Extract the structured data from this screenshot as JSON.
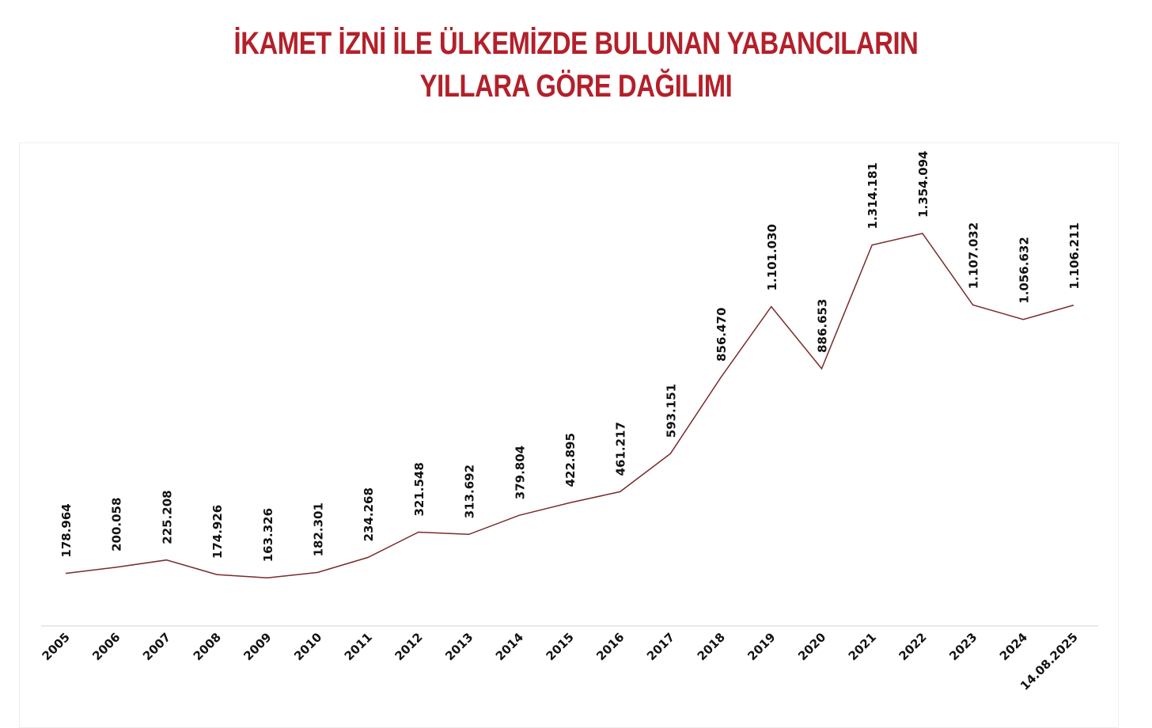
{
  "title": {
    "line1": "İKAMET İZNİ İLE ÜLKEMİZDE BULUNAN YABANCILARIN",
    "line2": "YILLARA GÖRE DAĞILIMI"
  },
  "colors": {
    "title": "#b3202a",
    "line": "#7a2a2a",
    "axis": "#d9d9d9",
    "text": "#111111"
  },
  "chart_data": {
    "type": "line",
    "title": "İKAMET İZNİ İLE ÜLKEMİZDE BULUNAN YABANCILARIN YILLARA GÖRE DAĞILIMI",
    "xlabel": "",
    "ylabel": "",
    "grid": false,
    "legend": "none",
    "categories": [
      "2005",
      "2006",
      "2007",
      "2008",
      "2009",
      "2010",
      "2011",
      "2012",
      "2013",
      "2014",
      "2015",
      "2016",
      "2017",
      "2018",
      "2019",
      "2020",
      "2021",
      "2022",
      "2023",
      "2024",
      "14.08.2025"
    ],
    "values": [
      178964,
      200058,
      225208,
      174926,
      163326,
      182301,
      234268,
      321548,
      313692,
      379804,
      422895,
      461217,
      593151,
      856470,
      1101030,
      886653,
      1314181,
      1354094,
      1107032,
      1056632,
      1106211
    ],
    "data_labels": [
      "178.964",
      "200.058",
      "225.208",
      "174.926",
      "163.326",
      "182.301",
      "234.268",
      "321.548",
      "313.692",
      "379.804",
      "422.895",
      "461.217",
      "593.151",
      "856.470",
      "1.101.030",
      "886.653",
      "1.314.181",
      "1.354.094",
      "1.107.032",
      "1.056.632",
      "1.106.211"
    ]
  }
}
